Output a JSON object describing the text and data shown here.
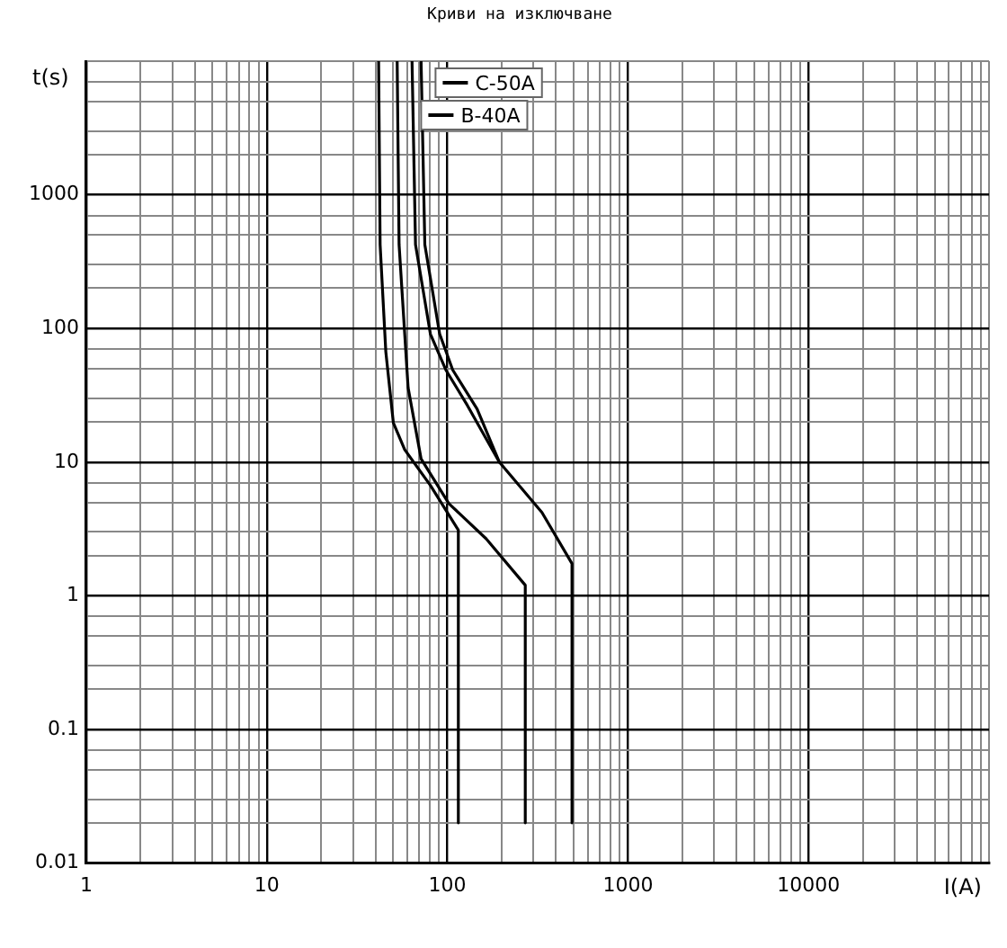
{
  "chart_data": {
    "type": "line",
    "title": "Криви на изключване",
    "xlabel": "I(A)",
    "ylabel": "t(s)",
    "log": "xy",
    "xlim": [
      1,
      100000
    ],
    "ylim": [
      0.01,
      10000
    ],
    "xticks": [
      1,
      {
        "value": 2,
        "label": null
      },
      {
        "value": 3,
        "label": null
      },
      {
        "value": 4,
        "label": null
      },
      {
        "value": 5,
        "label": null
      },
      {
        "value": 6,
        "label": null
      },
      {
        "value": 7,
        "label": null
      },
      {
        "value": 8,
        "label": null
      },
      {
        "value": 9,
        "label": null
      },
      10,
      {
        "value": 20,
        "label": null
      },
      {
        "value": 30,
        "label": null
      },
      {
        "value": 40,
        "label": null
      },
      {
        "value": 50,
        "label": null
      },
      {
        "value": 60,
        "label": null
      },
      {
        "value": 70,
        "label": null
      },
      {
        "value": 80,
        "label": null
      },
      {
        "value": 90,
        "label": null
      },
      100,
      {
        "value": 200,
        "label": null
      },
      {
        "value": 300,
        "label": null
      },
      {
        "value": 400,
        "label": null
      },
      {
        "value": 500,
        "label": null
      },
      {
        "value": 600,
        "label": null
      },
      {
        "value": 700,
        "label": null
      },
      {
        "value": 800,
        "label": null
      },
      {
        "value": 900,
        "label": null
      },
      1000,
      {
        "value": 2000,
        "label": null
      },
      {
        "value": 3000,
        "label": null
      },
      {
        "value": 4000,
        "label": null
      },
      {
        "value": 5000,
        "label": null
      },
      {
        "value": 6000,
        "label": null
      },
      {
        "value": 7000,
        "label": null
      },
      {
        "value": 8000,
        "label": null
      },
      {
        "value": 9000,
        "label": null
      },
      10000,
      {
        "value": 20000,
        "label": null
      },
      {
        "value": 30000,
        "label": null
      },
      {
        "value": 40000,
        "label": null
      },
      {
        "value": 50000,
        "label": null
      },
      {
        "value": 60000,
        "label": null
      },
      {
        "value": 70000,
        "label": null
      },
      {
        "value": 80000,
        "label": null
      },
      {
        "value": 90000,
        "label": null
      },
      {
        "value": 100000,
        "label": null
      }
    ],
    "yticks": [
      0.01,
      {
        "value": 0.02,
        "label": null
      },
      {
        "value": 0.03,
        "label": null
      },
      {
        "value": 0.05,
        "label": null
      },
      {
        "value": 0.07,
        "label": null
      },
      0.1,
      {
        "value": 0.2,
        "label": null
      },
      {
        "value": 0.3,
        "label": null
      },
      {
        "value": 0.5,
        "label": null
      },
      {
        "value": 0.7,
        "label": null
      },
      1,
      {
        "value": 2,
        "label": null
      },
      {
        "value": 3,
        "label": null
      },
      {
        "value": 5,
        "label": null
      },
      {
        "value": 7,
        "label": null
      },
      10,
      {
        "value": 20,
        "label": null
      },
      {
        "value": 30,
        "label": null
      },
      {
        "value": 50,
        "label": null
      },
      {
        "value": 70,
        "label": null
      },
      100,
      {
        "value": 200,
        "label": null
      },
      {
        "value": 300,
        "label": null
      },
      {
        "value": 500,
        "label": null
      },
      {
        "value": 700,
        "label": null
      },
      1000,
      {
        "value": 2000,
        "label": null
      },
      {
        "value": 3000,
        "label": null
      },
      {
        "value": 5000,
        "label": null
      },
      {
        "value": 7000,
        "label": null
      },
      {
        "value": 10000,
        "label": null
      }
    ],
    "grid": true,
    "legend": "top",
    "marker": "none",
    "line_style": "solid",
    "series": [
      {
        "name": "C-50A",
        "color": "#000000",
        "x": [
          63.7,
          66.6,
          80.5,
          98,
          129,
          194,
          334,
          490,
          490
        ],
        "values": [
          10000,
          424,
          91,
          49,
          26.6,
          10,
          4.2,
          1.74,
          0.02
        ]
      },
      {
        "color": "#000000",
        "x": [
          71.5,
          75,
          90.6,
          107,
          146,
          194
        ],
        "values": [
          10000,
          424,
          91,
          49,
          25,
          10
        ]
      },
      {
        "name": "B-40A",
        "color": "#000000",
        "x": [
          41.6,
          42.4,
          45.6,
          50.2,
          58,
          80.5,
          115,
          115
        ],
        "values": [
          10000,
          424,
          67,
          19.7,
          12.4,
          6.7,
          3.1,
          0.02
        ]
      },
      {
        "color": "#000000",
        "x": [
          52.7,
          54,
          60.6,
          71.5,
          101.9,
          164,
          270,
          270
        ],
        "values": [
          10000,
          424,
          36,
          10.6,
          4.9,
          2.67,
          1.2,
          0.02
        ]
      }
    ]
  }
}
